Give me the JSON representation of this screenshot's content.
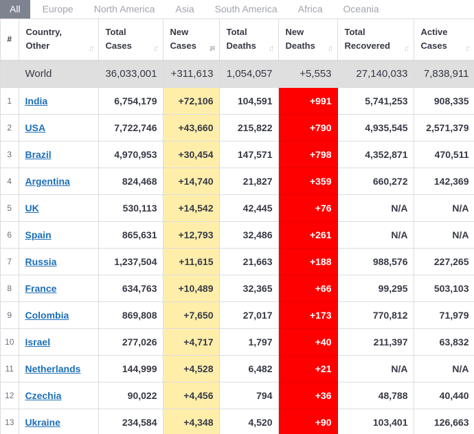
{
  "tabs": [
    "All",
    "Europe",
    "North America",
    "Asia",
    "South America",
    "Africa",
    "Oceania"
  ],
  "headers": {
    "num": "#",
    "country_l1": "Country,",
    "country_l2": "Other",
    "total_cases_l1": "Total",
    "total_cases_l2": "Cases",
    "new_cases_l1": "New",
    "new_cases_l2": "Cases",
    "total_deaths_l1": "Total",
    "total_deaths_l2": "Deaths",
    "new_deaths_l1": "New",
    "new_deaths_l2": "Deaths",
    "total_recovered_l1": "Total",
    "total_recovered_l2": "Recovered",
    "active_cases_l1": "Active",
    "active_cases_l2": "Cases"
  },
  "world": {
    "country": "World",
    "total_cases": "36,033,001",
    "new_cases": "+311,613",
    "total_deaths": "1,054,057",
    "new_deaths": "+5,553",
    "total_recovered": "27,140,033",
    "active_cases": "7,838,911"
  },
  "rows": [
    {
      "num": "1",
      "country": "India",
      "total_cases": "6,754,179",
      "new_cases": "+72,106",
      "total_deaths": "104,591",
      "new_deaths": "+991",
      "total_recovered": "5,741,253",
      "active_cases": "908,335"
    },
    {
      "num": "2",
      "country": "USA",
      "total_cases": "7,722,746",
      "new_cases": "+43,660",
      "total_deaths": "215,822",
      "new_deaths": "+790",
      "total_recovered": "4,935,545",
      "active_cases": "2,571,379"
    },
    {
      "num": "3",
      "country": "Brazil",
      "total_cases": "4,970,953",
      "new_cases": "+30,454",
      "total_deaths": "147,571",
      "new_deaths": "+798",
      "total_recovered": "4,352,871",
      "active_cases": "470,511"
    },
    {
      "num": "4",
      "country": "Argentina",
      "total_cases": "824,468",
      "new_cases": "+14,740",
      "total_deaths": "21,827",
      "new_deaths": "+359",
      "total_recovered": "660,272",
      "active_cases": "142,369"
    },
    {
      "num": "5",
      "country": "UK",
      "total_cases": "530,113",
      "new_cases": "+14,542",
      "total_deaths": "42,445",
      "new_deaths": "+76",
      "total_recovered": "N/A",
      "active_cases": "N/A"
    },
    {
      "num": "6",
      "country": "Spain",
      "total_cases": "865,631",
      "new_cases": "+12,793",
      "total_deaths": "32,486",
      "new_deaths": "+261",
      "total_recovered": "N/A",
      "active_cases": "N/A"
    },
    {
      "num": "7",
      "country": "Russia",
      "total_cases": "1,237,504",
      "new_cases": "+11,615",
      "total_deaths": "21,663",
      "new_deaths": "+188",
      "total_recovered": "988,576",
      "active_cases": "227,265"
    },
    {
      "num": "8",
      "country": "France",
      "total_cases": "634,763",
      "new_cases": "+10,489",
      "total_deaths": "32,365",
      "new_deaths": "+66",
      "total_recovered": "99,295",
      "active_cases": "503,103"
    },
    {
      "num": "9",
      "country": "Colombia",
      "total_cases": "869,808",
      "new_cases": "+7,650",
      "total_deaths": "27,017",
      "new_deaths": "+173",
      "total_recovered": "770,812",
      "active_cases": "71,979"
    },
    {
      "num": "10",
      "country": "Israel",
      "total_cases": "277,026",
      "new_cases": "+4,717",
      "total_deaths": "1,797",
      "new_deaths": "+40",
      "total_recovered": "211,397",
      "active_cases": "63,832"
    },
    {
      "num": "11",
      "country": "Netherlands",
      "total_cases": "144,999",
      "new_cases": "+4,528",
      "total_deaths": "6,482",
      "new_deaths": "+21",
      "total_recovered": "N/A",
      "active_cases": "N/A"
    },
    {
      "num": "12",
      "country": "Czechia",
      "total_cases": "90,022",
      "new_cases": "+4,456",
      "total_deaths": "794",
      "new_deaths": "+36",
      "total_recovered": "48,788",
      "active_cases": "40,440"
    },
    {
      "num": "13",
      "country": "Ukraine",
      "total_cases": "234,584",
      "new_cases": "+4,348",
      "total_deaths": "4,520",
      "new_deaths": "+90",
      "total_recovered": "103,401",
      "active_cases": "126,663"
    }
  ],
  "icons": {
    "sort": "sort-arrows-icon",
    "sort_active": "sort-descending-icon"
  },
  "colors": {
    "new_cases_bg": "#ffeeaa",
    "new_deaths_bg": "#ff0000",
    "link": "#1b6eb7",
    "active_tab_bg": "#7e8390",
    "world_row_bg": "#dfdfdf"
  }
}
